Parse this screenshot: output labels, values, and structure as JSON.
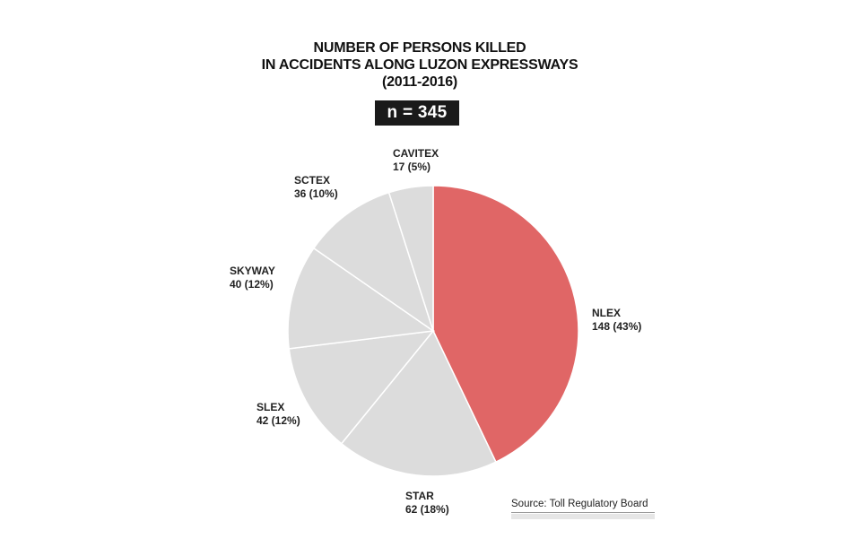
{
  "chart_data": {
    "type": "pie",
    "title_lines": [
      "NUMBER OF PERSONS KILLED",
      "IN ACCIDENTS ALONG LUZON EXPRESSWAYS",
      "(2011-2016)"
    ],
    "total_label": "n = 345",
    "slices": [
      {
        "name": "NLEX",
        "value": 148,
        "value_label": "148 (43%)",
        "color": "#e06666"
      },
      {
        "name": "STAR",
        "value": 62,
        "value_label": "62 (18%)",
        "color": "#dcdcdc"
      },
      {
        "name": "SLEX",
        "value": 42,
        "value_label": "42 (12%)",
        "color": "#dcdcdc"
      },
      {
        "name": "SKYWAY",
        "value": 40,
        "value_label": "40 (12%)",
        "color": "#dcdcdc"
      },
      {
        "name": "SCTEX",
        "value": 36,
        "value_label": "36 (10%)",
        "color": "#dcdcdc"
      },
      {
        "name": "CAVITEX",
        "value": 17,
        "value_label": "17 (5%)",
        "color": "#dcdcdc"
      }
    ],
    "source": "Source: Toll Regulatory Board"
  }
}
